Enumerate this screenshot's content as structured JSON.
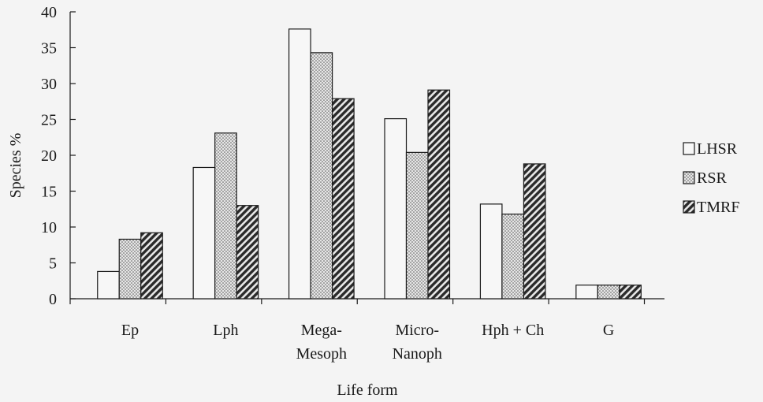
{
  "chart_data": {
    "type": "bar",
    "title": "",
    "xlabel": "Life form",
    "ylabel": "Species %",
    "ylim": [
      0,
      40
    ],
    "yticks": [
      0,
      5,
      10,
      15,
      20,
      25,
      30,
      35,
      40
    ],
    "grid": false,
    "legend_position": "right",
    "categories": [
      [
        "Ep"
      ],
      [
        "Lph"
      ],
      [
        "Mega-",
        "Mesoph"
      ],
      [
        "Micro-",
        "Nanoph"
      ],
      [
        "Hph + Ch"
      ],
      [
        "G"
      ]
    ],
    "series": [
      {
        "name": "LHSR",
        "pattern": "blank",
        "values": [
          3.8,
          18.3,
          37.6,
          25.1,
          13.2,
          1.9
        ]
      },
      {
        "name": "RSR",
        "pattern": "dots",
        "values": [
          8.3,
          23.1,
          34.3,
          20.4,
          11.8,
          1.9
        ]
      },
      {
        "name": "TMRF",
        "pattern": "hatch",
        "values": [
          9.2,
          13.0,
          27.9,
          29.1,
          18.8,
          1.9
        ]
      }
    ],
    "colors": {
      "background": "#f4f4f4",
      "bar_fill": "#f7f7f7",
      "ink": "#1a1a1a",
      "dots": "#555555"
    }
  }
}
